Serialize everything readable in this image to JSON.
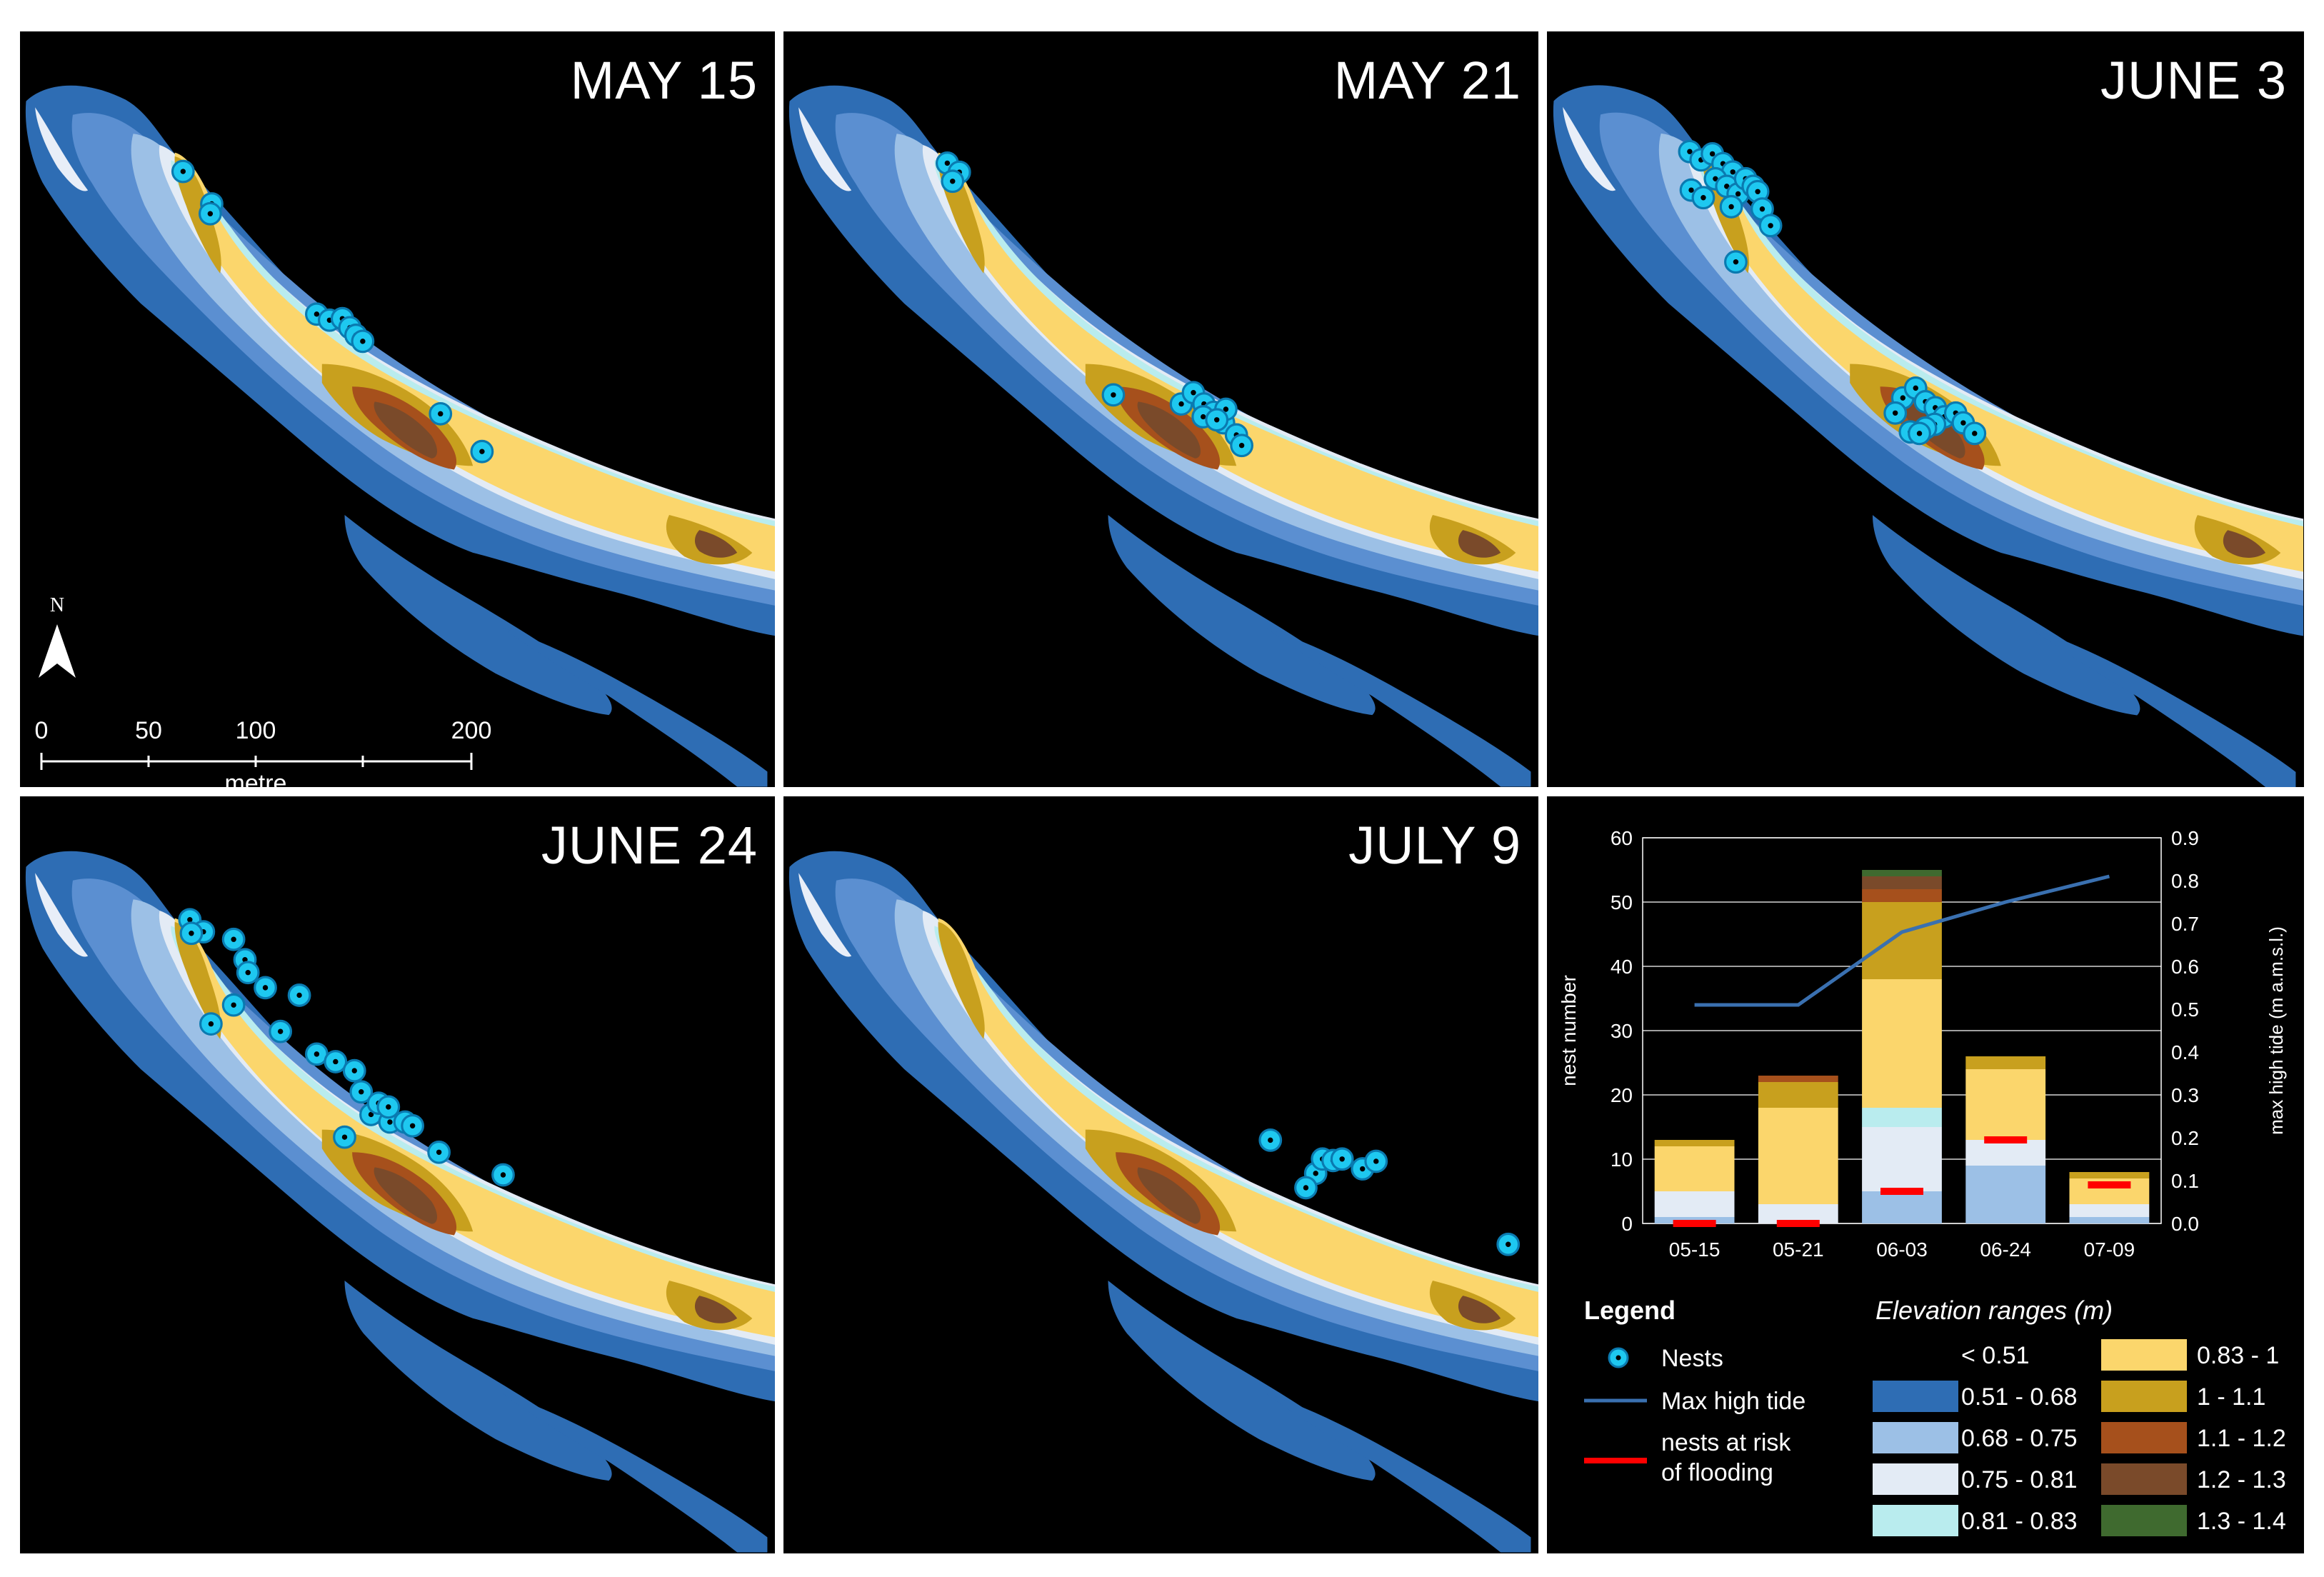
{
  "panels": [
    {
      "title": "MAY 15"
    },
    {
      "title": "MAY 21"
    },
    {
      "title": "JUNE 3"
    },
    {
      "title": "JUNE 24"
    },
    {
      "title": "JULY 9"
    }
  ],
  "scale_bar": {
    "north_label": "N",
    "ticks": [
      "0",
      "50",
      "100",
      "200"
    ],
    "unit": "metre"
  },
  "chart_data": {
    "type": "bar",
    "stacked": true,
    "categories": [
      "05-15",
      "05-21",
      "06-03",
      "06-24",
      "07-09"
    ],
    "ylabel": "nest number",
    "y2label": "max high tide (m a.m.s.l.)",
    "ylim": [
      0,
      60
    ],
    "y2lim": [
      0,
      0.9
    ],
    "yticks": [
      "0",
      "10",
      "20",
      "30",
      "40",
      "50",
      "60"
    ],
    "y2ticks": [
      "0.0",
      "0.1",
      "0.2",
      "0.3",
      "0.4",
      "0.5",
      "0.6",
      "0.7",
      "0.8",
      "0.9"
    ],
    "grid": true,
    "series": [
      {
        "name": "< 0.51",
        "color": "#ffffff",
        "values": [
          0,
          0,
          0,
          0,
          0
        ]
      },
      {
        "name": "0.51 - 0.68",
        "color": "#2e6db4",
        "values": [
          0,
          0,
          0,
          0,
          0
        ]
      },
      {
        "name": "0.68 - 0.75",
        "color": "#9cc0e6",
        "values": [
          1,
          0,
          5,
          9,
          1
        ]
      },
      {
        "name": "0.75 - 0.81",
        "color": "#e3ebf5",
        "values": [
          4,
          3,
          10,
          4,
          2
        ]
      },
      {
        "name": "0.81 - 0.83",
        "color": "#b9ecee",
        "values": [
          0,
          0,
          3,
          0,
          0
        ]
      },
      {
        "name": "0.83 - 1",
        "color": "#fbd66c",
        "values": [
          7,
          15,
          20,
          11,
          4
        ]
      },
      {
        "name": "1 - 1.1",
        "color": "#c8a01e",
        "values": [
          1,
          4,
          12,
          2,
          1
        ]
      },
      {
        "name": "1.1 - 1.2",
        "color": "#a6501c",
        "values": [
          0,
          1,
          2,
          0,
          0
        ]
      },
      {
        "name": "1.2 - 1.3",
        "color": "#7a4a2a",
        "values": [
          0,
          0,
          2,
          0,
          0
        ]
      },
      {
        "name": "1.3 - 1.4",
        "color": "#3f6a2f",
        "values": [
          0,
          0,
          1,
          0,
          0
        ]
      }
    ],
    "max_high_tide": {
      "name": "Max high tide",
      "color": "#3a70b0",
      "values": [
        0.51,
        0.51,
        0.68,
        0.75,
        0.81
      ]
    },
    "nests_at_risk": {
      "name": "nests at risk of flooding",
      "color": "#ff0000",
      "values": [
        0,
        0,
        5,
        13,
        6
      ]
    }
  },
  "legend": {
    "title": "Legend",
    "nests_label": "Nests",
    "tide_label": "Max high tide",
    "risk_label_1": "nests at risk",
    "risk_label_2": "of flooding",
    "elev_title": "Elevation ranges (m)"
  },
  "colors": {
    "deep_blue": "#2e6db4",
    "mid_blue": "#5b8fd1",
    "light_blue": "#9cc0e6",
    "pale": "#e3ebf5",
    "cyan": "#b9ecee",
    "yellow": "#fbd66c",
    "gold": "#c8a01e",
    "rust": "#a6501c",
    "brown": "#7a4a2a",
    "nest": "#1ec8f0"
  },
  "nests": [
    [
      [
        0.216,
        0.185
      ],
      [
        0.254,
        0.228
      ],
      [
        0.252,
        0.241
      ],
      [
        0.393,
        0.374
      ],
      [
        0.41,
        0.382
      ],
      [
        0.427,
        0.38
      ],
      [
        0.437,
        0.392
      ],
      [
        0.445,
        0.402
      ],
      [
        0.454,
        0.41
      ],
      [
        0.557,
        0.506
      ],
      [
        0.612,
        0.556
      ]
    ],
    [
      [
        0.217,
        0.174
      ],
      [
        0.233,
        0.186
      ],
      [
        0.224,
        0.198
      ],
      [
        0.437,
        0.481
      ],
      [
        0.527,
        0.493
      ],
      [
        0.543,
        0.478
      ],
      [
        0.557,
        0.493
      ],
      [
        0.57,
        0.504
      ],
      [
        0.583,
        0.518
      ],
      [
        0.6,
        0.534
      ],
      [
        0.586,
        0.5
      ],
      [
        0.556,
        0.51
      ],
      [
        0.574,
        0.514
      ],
      [
        0.607,
        0.548
      ]
    ],
    [
      [
        0.188,
        0.159
      ],
      [
        0.203,
        0.17
      ],
      [
        0.218,
        0.162
      ],
      [
        0.232,
        0.175
      ],
      [
        0.245,
        0.186
      ],
      [
        0.222,
        0.195
      ],
      [
        0.237,
        0.205
      ],
      [
        0.252,
        0.215
      ],
      [
        0.262,
        0.195
      ],
      [
        0.272,
        0.205
      ],
      [
        0.19,
        0.21
      ],
      [
        0.206,
        0.22
      ],
      [
        0.243,
        0.232
      ],
      [
        0.278,
        0.212
      ],
      [
        0.284,
        0.235
      ],
      [
        0.295,
        0.257
      ],
      [
        0.249,
        0.305
      ],
      [
        0.47,
        0.485
      ],
      [
        0.487,
        0.472
      ],
      [
        0.5,
        0.49
      ],
      [
        0.46,
        0.505
      ],
      [
        0.513,
        0.498
      ],
      [
        0.525,
        0.51
      ],
      [
        0.54,
        0.505
      ],
      [
        0.55,
        0.518
      ],
      [
        0.512,
        0.52
      ],
      [
        0.565,
        0.532
      ],
      [
        0.48,
        0.53
      ],
      [
        0.5,
        0.525
      ],
      [
        0.492,
        0.532
      ]
    ],
    [
      [
        0.225,
        0.162
      ],
      [
        0.243,
        0.178
      ],
      [
        0.227,
        0.18
      ],
      [
        0.283,
        0.188
      ],
      [
        0.298,
        0.215
      ],
      [
        0.302,
        0.232
      ],
      [
        0.325,
        0.252
      ],
      [
        0.37,
        0.262
      ],
      [
        0.283,
        0.275
      ],
      [
        0.253,
        0.3
      ],
      [
        0.345,
        0.31
      ],
      [
        0.393,
        0.34
      ],
      [
        0.418,
        0.35
      ],
      [
        0.443,
        0.362
      ],
      [
        0.452,
        0.39
      ],
      [
        0.465,
        0.42
      ],
      [
        0.475,
        0.405
      ],
      [
        0.49,
        0.43
      ],
      [
        0.488,
        0.41
      ],
      [
        0.51,
        0.43
      ],
      [
        0.52,
        0.435
      ],
      [
        0.43,
        0.45
      ],
      [
        0.555,
        0.47
      ],
      [
        0.64,
        0.5
      ]
    ],
    [
      [
        0.645,
        0.454
      ],
      [
        0.705,
        0.498
      ],
      [
        0.714,
        0.479
      ],
      [
        0.728,
        0.481
      ],
      [
        0.74,
        0.479
      ],
      [
        0.767,
        0.492
      ],
      [
        0.785,
        0.482
      ],
      [
        0.692,
        0.517
      ],
      [
        0.96,
        0.592
      ]
    ]
  ]
}
